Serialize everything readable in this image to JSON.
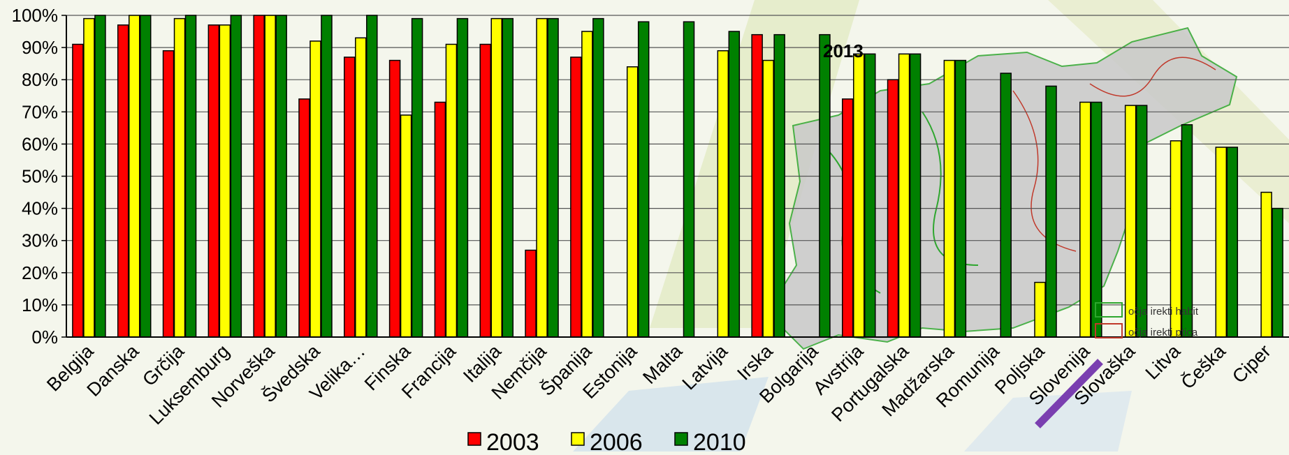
{
  "colors": {
    "2003": "#ff0000",
    "2006": "#ffff00",
    "2010": "#008000",
    "map_fill": "#c9c9c9",
    "map_lines": "#2ea62e",
    "accent_purple": "#7a3fb0"
  },
  "overlay": {
    "year_label": "2013",
    "map_legend": [
      "očja   irekti  habit",
      "očja   irekti  ptica"
    ]
  },
  "chart_data": {
    "type": "bar",
    "title": "",
    "xlabel": "",
    "ylabel": "",
    "ylim": [
      0,
      100
    ],
    "yticks": [
      "0%",
      "10%",
      "20%",
      "30%",
      "40%",
      "50%",
      "60%",
      "70%",
      "80%",
      "90%",
      "100%"
    ],
    "grid": true,
    "legend_position": "bottom",
    "categories": [
      "Belgija",
      "Danska",
      "Grčija",
      "Luksemburg",
      "Norveška",
      "Švedska",
      "Velika…",
      "Finska",
      "Francija",
      "Italija",
      "Nemčija",
      "Španija",
      "Estonija",
      "Malta",
      "Latvija",
      "Irska",
      "Bolgarija",
      "Avstrija",
      "Portugalska",
      "Madžarska",
      "Romunija",
      "Poljska",
      "Slovenija",
      "Slovaška",
      "Litva",
      "Češka",
      "Ciper"
    ],
    "series": [
      {
        "name": "2003",
        "values": [
          91,
          97,
          89,
          97,
          100,
          74,
          87,
          86,
          73,
          91,
          27,
          87,
          null,
          null,
          null,
          94,
          null,
          74,
          80,
          null,
          null,
          null,
          null,
          null,
          null,
          null,
          null
        ]
      },
      {
        "name": "2006",
        "values": [
          99,
          100,
          99,
          97,
          100,
          92,
          93,
          69,
          91,
          99,
          99,
          95,
          84,
          null,
          89,
          86,
          null,
          88,
          88,
          86,
          null,
          17,
          73,
          72,
          61,
          59,
          45
        ]
      },
      {
        "name": "2010",
        "values": [
          100,
          100,
          100,
          100,
          100,
          100,
          100,
          99,
          99,
          99,
          99,
          99,
          98,
          98,
          95,
          94,
          94,
          88,
          88,
          86,
          82,
          78,
          73,
          72,
          66,
          59,
          40
        ]
      }
    ]
  }
}
